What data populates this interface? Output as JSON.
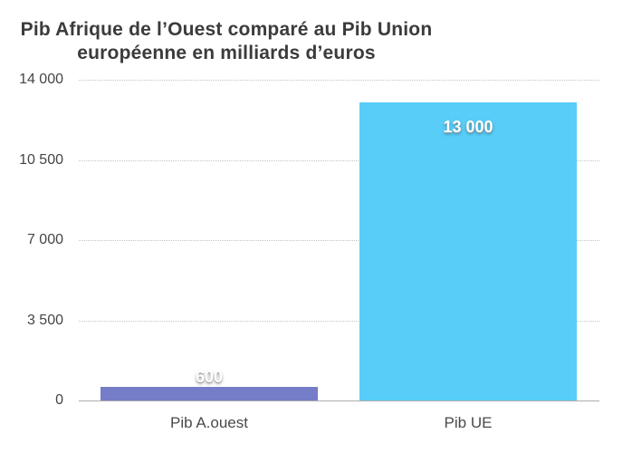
{
  "title": {
    "line1": "Pib Afrique de l’Ouest comparé au Pib Union",
    "line2": "européenne en milliards d’euros"
  },
  "chart_data": {
    "type": "bar",
    "title": "Pib Afrique de l’Ouest comparé au Pib Union européenne en milliards d’euros",
    "categories": [
      "Pib A.ouest",
      "Pib UE"
    ],
    "values": [
      600,
      13000
    ],
    "value_labels": [
      "600",
      "13 000"
    ],
    "xlabel": "",
    "ylabel": "",
    "ylim": [
      0,
      14000
    ],
    "yticks": [
      0,
      3500,
      7000,
      10500,
      14000
    ],
    "ytick_labels": [
      "0",
      "3 500",
      "7 000",
      "10 500",
      "14 000"
    ],
    "grid": "horizontal-dotted",
    "legend": "none",
    "bar_colors": [
      "#757dc8",
      "#58cdf7"
    ],
    "background": "#ffffff",
    "title_color": "#3b3b3b",
    "tick_color": "#454545"
  }
}
